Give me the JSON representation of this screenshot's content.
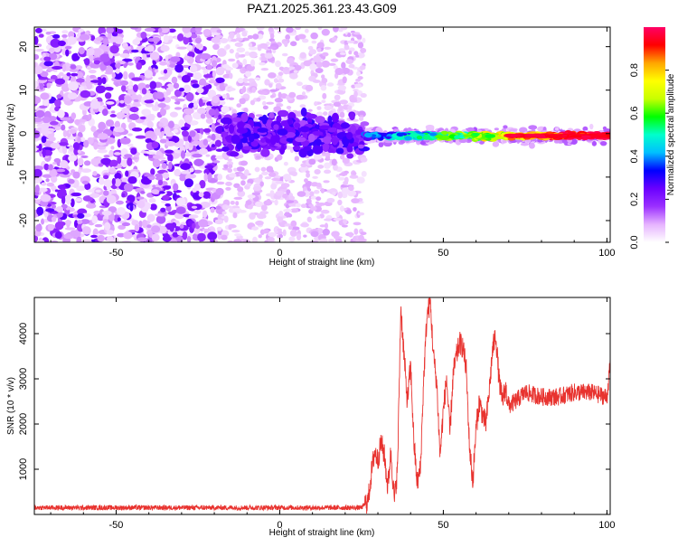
{
  "title": "PAZ1.2025.361.23.43.G09",
  "chart_data": [
    {
      "type": "heatmap",
      "xlabel": "Height of straight line (km)",
      "ylabel": "Frequency (Hz)",
      "xlim": [
        -75,
        101
      ],
      "ylim": [
        -25,
        24.5
      ],
      "xticks": [
        -50,
        0,
        50,
        100
      ],
      "yticks": [
        -20,
        -10,
        0,
        10,
        20
      ],
      "colorbar": {
        "label": "Normalized spectral amplitude",
        "range": [
          0,
          1
        ],
        "ticks": [
          "0.0",
          "0.2",
          "0.4",
          "0.6",
          "0.8"
        ],
        "colors": [
          "#ffffff",
          "#e6b3ff",
          "#9b30ff",
          "#6a00ff",
          "#0000ff",
          "#00bfff",
          "#00ffcc",
          "#00ff00",
          "#c8ff00",
          "#ffff00",
          "#ffa500",
          "#ff0000",
          "#ff0066"
        ]
      },
      "regions": [
        {
          "x": [
            -75,
            -17
          ],
          "description_level": 0.15,
          "freq_spread": [
            -25,
            24.5
          ]
        },
        {
          "x": [
            -17,
            26
          ],
          "description_level": 0.25,
          "freq_spread": [
            -12,
            8
          ]
        },
        {
          "x": [
            26,
            101
          ],
          "description_level": 0.9,
          "freq_center": -0.5,
          "freq_spread": [
            -1.5,
            1
          ]
        }
      ],
      "grid": false
    },
    {
      "type": "line",
      "xlabel": "Height of straight line (km)",
      "ylabel": "SNR (10 * v/v)",
      "xlim": [
        -75,
        101
      ],
      "ylim": [
        0,
        4800
      ],
      "xticks": [
        -50,
        0,
        50,
        100
      ],
      "yticks": [
        1000,
        2000,
        3000,
        4000
      ],
      "color": "#e8332f",
      "series": [
        {
          "x": [
            -75,
            25,
            27,
            28,
            29,
            30,
            31,
            32,
            33,
            34,
            35,
            36,
            37,
            38,
            39,
            40,
            41,
            42,
            43,
            44,
            45,
            46,
            47,
            48,
            49,
            50,
            51,
            52,
            53,
            54,
            55,
            56,
            57,
            58,
            59,
            60,
            61,
            62,
            63,
            64,
            65,
            66,
            67,
            68,
            69,
            70,
            72,
            75,
            80,
            85,
            90,
            95,
            100,
            101
          ],
          "y": [
            150,
            150,
            300,
            900,
            1400,
            1200,
            1600,
            1300,
            600,
            1400,
            300,
            1000,
            4600,
            3500,
            2500,
            3300,
            1600,
            700,
            1000,
            3000,
            4400,
            4700,
            3500,
            2900,
            1300,
            2300,
            3000,
            1800,
            3100,
            3500,
            3800,
            3700,
            3200,
            1500,
            700,
            1900,
            2500,
            2200,
            2000,
            2700,
            3600,
            4000,
            3000,
            2500,
            2800,
            2400,
            2500,
            2700,
            2600,
            2600,
            2700,
            2700,
            2600,
            3300
          ]
        }
      ]
    }
  ]
}
